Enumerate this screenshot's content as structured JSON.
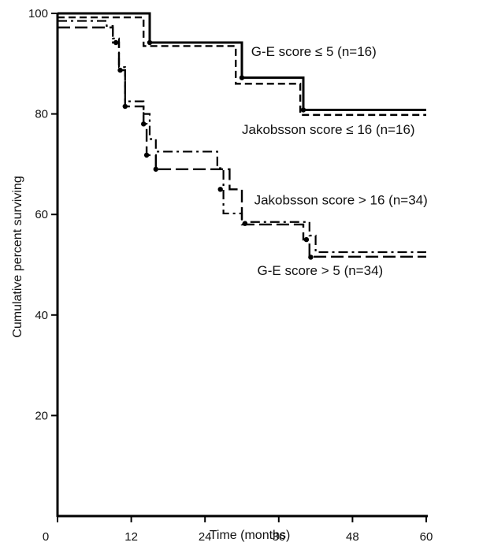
{
  "chart_data": {
    "type": "line",
    "xlabel": "Time (months)",
    "ylabel": "Cumulative percent surviving",
    "xlim": [
      0,
      60
    ],
    "ylim": [
      0,
      100
    ],
    "xticks": [
      0,
      12,
      24,
      36,
      48,
      60
    ],
    "yticks": [
      20,
      40,
      60,
      80,
      100
    ],
    "x_tick_labels": [
      "0",
      "12",
      "24",
      "36",
      "48",
      "60"
    ],
    "y_tick_labels": [
      "20",
      "40",
      "60",
      "80",
      "100"
    ],
    "grid": false,
    "series": [
      {
        "name": "G-E score ≤ 5 (n=16)",
        "line_style": "solid",
        "color": "#000000",
        "x": [
          0,
          15,
          30,
          40,
          60
        ],
        "y": [
          100,
          94.2,
          87.2,
          80.8,
          80.8
        ]
      },
      {
        "name": "Jakobsson score ≤ 16 (n=16)",
        "line_style": "dashed",
        "color": "#000000",
        "x": [
          0,
          14,
          29,
          39.5,
          60
        ],
        "y": [
          99.2,
          93.5,
          86,
          79.8,
          79.8
        ]
      },
      {
        "name": "Jakobsson score > 16 (n=34)",
        "line_style": "dashdot",
        "color": "#000000",
        "x": [
          0,
          8,
          9,
          10,
          11,
          14,
          15,
          16,
          26,
          27,
          30,
          39.5,
          41,
          42,
          60
        ],
        "y": [
          98.5,
          97.5,
          95,
          89.3,
          82.5,
          80,
          75,
          72.5,
          69.2,
          60.2,
          58.5,
          58.5,
          55.8,
          52.5,
          52.5
        ]
      },
      {
        "name": "G-E score > 5 (n=34)",
        "line_style": "longdash",
        "color": "#000000",
        "x": [
          0,
          6,
          9,
          10,
          11,
          14,
          14.5,
          16,
          26,
          28,
          30,
          40,
          41,
          42,
          60
        ],
        "y": [
          97.2,
          97.2,
          94.2,
          88.7,
          81.5,
          78,
          71.8,
          69,
          69,
          65,
          58,
          55,
          51.6,
          51.6,
          51.6
        ]
      }
    ],
    "annotations": [
      {
        "text": "G-E score ≤ 5 (n=16)",
        "x": 31.5,
        "y": 91.5
      },
      {
        "text": "Jakobsson score ≤ 16 (n=16)",
        "x": 30,
        "y": 76
      },
      {
        "text": "Jakobsson score > 16 (n=34)",
        "x": 32,
        "y": 62
      },
      {
        "text": "G-E score > 5 (n=34)",
        "x": 32.5,
        "y": 48
      }
    ],
    "censor_markers": [
      {
        "x": 9.5,
        "y": 94.2
      },
      {
        "x": 10.2,
        "y": 88.7
      },
      {
        "x": 11,
        "y": 81.5
      },
      {
        "x": 14,
        "y": 78
      },
      {
        "x": 14.5,
        "y": 71.8
      },
      {
        "x": 16,
        "y": 69
      },
      {
        "x": 15,
        "y": 94.2
      },
      {
        "x": 30,
        "y": 87.2
      },
      {
        "x": 40,
        "y": 80.8
      },
      {
        "x": 26.5,
        "y": 65
      },
      {
        "x": 30.5,
        "y": 58.2
      },
      {
        "x": 40.5,
        "y": 55
      },
      {
        "x": 41.2,
        "y": 51.5
      }
    ]
  }
}
